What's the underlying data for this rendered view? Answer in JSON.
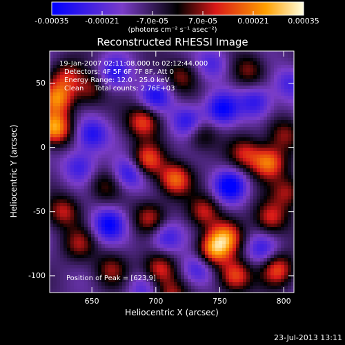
{
  "colorbar": {
    "tick_labels": [
      "-0.00035",
      "-0.00021",
      "-7.0e-05",
      "7.0e-05",
      "0.00021",
      "0.00035"
    ],
    "ticks": [
      -0.00035,
      -0.00021,
      -7e-05,
      7e-05,
      0.00021,
      0.00035
    ],
    "range": [
      -0.00035,
      0.00035
    ],
    "unit_label": "(photons cm⁻² s⁻¹ asec⁻²)"
  },
  "chart_data": {
    "type": "heatmap",
    "title": "Reconstructed RHESSI Image",
    "xlabel": "Heliocentric X (arcsec)",
    "ylabel": "Heliocentric Y (arcsec)",
    "xlim": [
      617,
      808
    ],
    "ylim": [
      -113,
      75
    ],
    "xticks": [
      650,
      700,
      750,
      800
    ],
    "yticks": [
      -100,
      -50,
      0,
      50
    ],
    "zlim": [
      -0.00035,
      0.00035
    ],
    "grid": false,
    "peak_xy": [
      623,
      9
    ],
    "sources": [
      {
        "x": 621,
        "y": 15,
        "v": 1.0
      },
      {
        "x": 623,
        "y": 38,
        "v": 0.8
      },
      {
        "x": 630,
        "y": 55,
        "v": 0.5
      },
      {
        "x": 628,
        "y": -50,
        "v": 0.55
      },
      {
        "x": 640,
        "y": -75,
        "v": 0.45
      },
      {
        "x": 648,
        "y": 45,
        "v": 0.45
      },
      {
        "x": 660,
        "y": -30,
        "v": 0.35
      },
      {
        "x": 665,
        "y": -95,
        "v": 0.45
      },
      {
        "x": 690,
        "y": 20,
        "v": 0.7
      },
      {
        "x": 693,
        "y": -10,
        "v": 0.75
      },
      {
        "x": 695,
        "y": -55,
        "v": 0.55
      },
      {
        "x": 703,
        "y": -95,
        "v": 0.65
      },
      {
        "x": 715,
        "y": -25,
        "v": 0.8
      },
      {
        "x": 720,
        "y": 55,
        "v": 0.45
      },
      {
        "x": 712,
        "y": -115,
        "v": 0.5
      },
      {
        "x": 735,
        "y": 10,
        "v": 0.4
      },
      {
        "x": 738,
        "y": -50,
        "v": 0.55
      },
      {
        "x": 745,
        "y": -80,
        "v": 0.85
      },
      {
        "x": 755,
        "y": -70,
        "v": 0.75
      },
      {
        "x": 762,
        "y": -100,
        "v": 0.75
      },
      {
        "x": 770,
        "y": -5,
        "v": 0.55
      },
      {
        "x": 773,
        "y": 60,
        "v": 0.45
      },
      {
        "x": 788,
        "y": -12,
        "v": 0.85
      },
      {
        "x": 790,
        "y": -55,
        "v": 0.6
      },
      {
        "x": 795,
        "y": -95,
        "v": 0.7
      },
      {
        "x": 800,
        "y": 10,
        "v": 0.45
      },
      {
        "x": 803,
        "y": -35,
        "v": 0.5
      },
      {
        "x": 650,
        "y": 10,
        "v": -0.6
      },
      {
        "x": 668,
        "y": 58,
        "v": -0.5
      },
      {
        "x": 663,
        "y": -60,
        "v": -0.7
      },
      {
        "x": 680,
        "y": -20,
        "v": -0.6
      },
      {
        "x": 700,
        "y": 40,
        "v": -0.55
      },
      {
        "x": 708,
        "y": -70,
        "v": -0.5
      },
      {
        "x": 725,
        "y": 20,
        "v": -0.6
      },
      {
        "x": 733,
        "y": -95,
        "v": -0.5
      },
      {
        "x": 752,
        "y": 30,
        "v": -0.65
      },
      {
        "x": 758,
        "y": -30,
        "v": -0.75
      },
      {
        "x": 778,
        "y": 35,
        "v": -0.55
      },
      {
        "x": 783,
        "y": -80,
        "v": -0.45
      },
      {
        "x": 640,
        "y": -15,
        "v": -0.45
      },
      {
        "x": 805,
        "y": 50,
        "v": -0.4
      },
      {
        "x": 745,
        "y": 65,
        "v": -0.4
      },
      {
        "x": 690,
        "y": -110,
        "v": -0.35
      }
    ]
  },
  "overlay": {
    "time": "19-Jan-2007 02:11:08.000 to 02:12:44.000",
    "detectors": "Detectors: 4F 5F 6F 7F 8F, Att 0",
    "energy": "Energy Range: 12.0 - 25.0 keV",
    "clean": "Clean     Total counts: 2.76E+03",
    "peak": "Position of Peak = [623,9]"
  },
  "footer": {
    "date": "23-Jul-2013 13:11"
  }
}
